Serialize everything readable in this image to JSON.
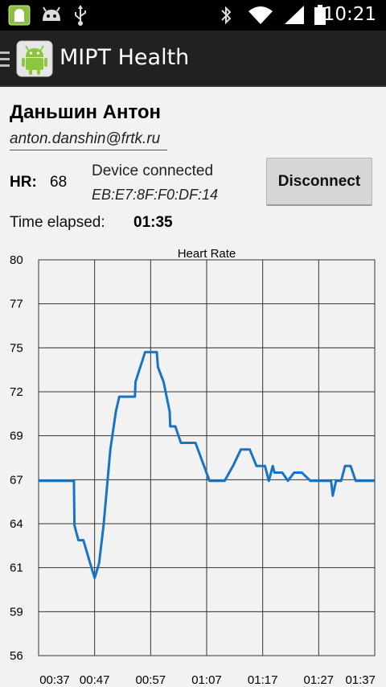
{
  "status_bar": {
    "time": "10:21",
    "left_icons": [
      "android-notification-icon",
      "android-debug-icon",
      "usb-icon"
    ],
    "right_icons": [
      "bluetooth-icon",
      "wifi-icon",
      "signal-icon",
      "battery-icon"
    ]
  },
  "action_bar": {
    "title": "MIPT Health",
    "menu_icon": "drawer-menu-icon",
    "app_icon": "android-app-icon"
  },
  "user": {
    "name": "Даньшин Антон",
    "email": "anton.danshin@frtk.ru"
  },
  "heart_rate": {
    "label": "HR:",
    "value": "68"
  },
  "device": {
    "status": "Device connected",
    "mac": "EB:E7:8F:F0:DF:14"
  },
  "disconnect_button": {
    "label": "Disconnect"
  },
  "session": {
    "elapsed_label": "Time elapsed:",
    "elapsed_value": "01:35"
  },
  "colors": {
    "line": "#1a73c4",
    "grid": "#333333",
    "background": "#f2f2f2"
  },
  "chart_data": {
    "type": "line",
    "title": "Heart Rate",
    "xlabel": "",
    "ylabel": "",
    "grid": true,
    "legend": "none",
    "xlim": [
      0,
      60
    ],
    "ylim": [
      56,
      80
    ],
    "y_ticks": [
      "80",
      "77",
      "75",
      "72",
      "69",
      "67",
      "64",
      "61",
      "59",
      "56"
    ],
    "x_ticks": [
      {
        "value": 0,
        "label": "00:37"
      },
      {
        "value": 10,
        "label": "00:47"
      },
      {
        "value": 20,
        "label": "00:57"
      },
      {
        "value": 30,
        "label": "01:07"
      },
      {
        "value": 40,
        "label": "01:17"
      },
      {
        "value": 50,
        "label": "01:27"
      },
      {
        "value": 60,
        "label": "01:37"
      }
    ],
    "series": [
      {
        "name": "",
        "x": [
          0,
          6.3,
          6.4,
          7.1,
          8.0,
          9.2,
          10.0,
          10.8,
          11.6,
          12.8,
          13.8,
          14.4,
          15.0,
          17.2,
          17.3,
          19.0,
          20.1,
          21.1,
          21.3,
          22.3,
          23.4,
          23.5,
          24.4,
          25.4,
          28.0,
          30.5,
          32.5,
          33.2,
          34.7,
          36.1,
          37.7,
          38.9,
          40.4,
          41.1,
          41.8,
          42.1,
          43.5,
          44.5,
          45.6,
          47.0,
          48.5,
          49.2,
          52.2,
          52.5,
          53.1,
          54.0,
          54.7,
          55.7,
          56.6,
          60.0
        ],
        "y": [
          66.6,
          66.6,
          63.9,
          63.0,
          63.0,
          61.6,
          60.7,
          61.6,
          63.9,
          68.5,
          70.8,
          71.7,
          71.7,
          71.7,
          72.6,
          74.4,
          74.4,
          74.4,
          73.5,
          72.6,
          70.8,
          69.9,
          69.9,
          68.9,
          68.9,
          66.6,
          66.6,
          66.6,
          67.5,
          68.5,
          68.5,
          67.5,
          67.5,
          66.6,
          67.5,
          67.1,
          67.1,
          66.6,
          67.1,
          67.1,
          66.6,
          66.6,
          66.6,
          65.7,
          66.6,
          66.6,
          67.5,
          67.5,
          66.6,
          66.6
        ]
      }
    ]
  }
}
